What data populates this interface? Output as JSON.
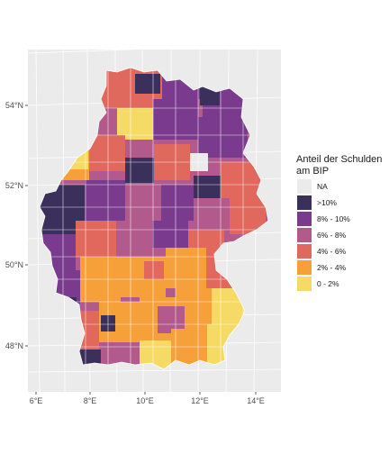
{
  "map": {
    "type": "choropleth",
    "region": "Germany (districts)",
    "x_axis_ticks": [
      "6°E",
      "8°E",
      "10°E",
      "12°E",
      "14°E"
    ],
    "y_axis_ticks": [
      "54°N",
      "52°N",
      "50°N",
      "48°N"
    ],
    "background_color": "#ebebeb",
    "grid_color": "#ffffff",
    "border_color": "#ffffff"
  },
  "legend": {
    "title_line1": "Anteil der Schulden",
    "title_line2": "am BIP",
    "items": [
      {
        "label": "NA",
        "color": "#ebebeb"
      },
      {
        "label": ">10%",
        "color": "#3b2f5c"
      },
      {
        "label": "8% - 10%",
        "color": "#7a3b8f"
      },
      {
        "label": "6% - 8%",
        "color": "#b25a8c"
      },
      {
        "label": "4% - 6%",
        "color": "#e0685d"
      },
      {
        "label": "2% - 4%",
        "color": "#f6a03a"
      },
      {
        "label": "0 - 2%",
        "color": "#f5db66"
      }
    ]
  }
}
